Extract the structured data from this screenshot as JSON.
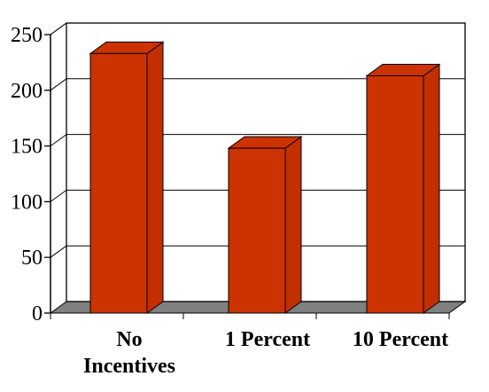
{
  "chart_data": {
    "type": "bar",
    "title": "",
    "xlabel": "",
    "ylabel": "",
    "categories": [
      [
        "No",
        "Incentives"
      ],
      [
        "1 Percent"
      ],
      [
        "10 Percent"
      ]
    ],
    "values": [
      233,
      148,
      213
    ],
    "ylim": [
      0,
      250
    ],
    "yticks": [
      0,
      50,
      100,
      150,
      200,
      250
    ],
    "grid": true,
    "style": "3d",
    "colors": {
      "bar_front": "#cc3300",
      "bar_side": "#c22f00",
      "bar_top": "#cc3300",
      "floor": "#808080",
      "grid": "#000000"
    }
  }
}
